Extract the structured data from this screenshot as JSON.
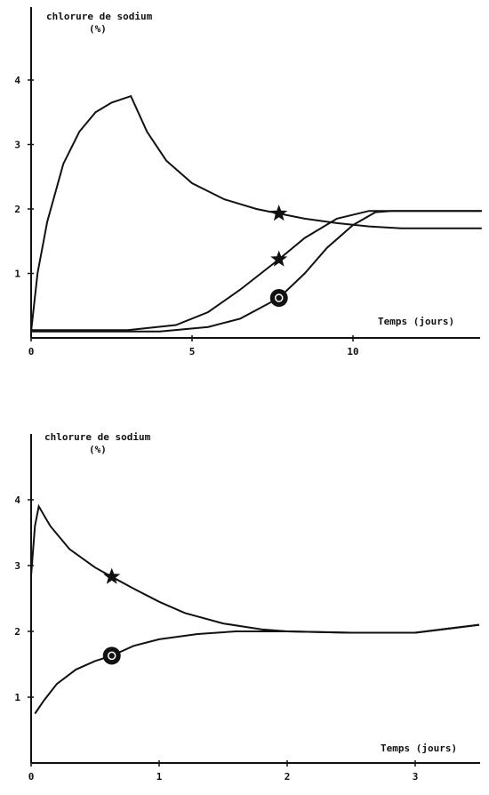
{
  "chart_data": [
    {
      "type": "line",
      "ylabel_line1": "chlorure de sodium",
      "ylabel_line2": "(%)",
      "xlabel": "Temps (jours)",
      "xlim": [
        0,
        14
      ],
      "ylim": [
        0,
        5
      ],
      "xticks": [
        0,
        5,
        10
      ],
      "yticks": [
        1,
        2,
        3,
        4
      ],
      "grid": false,
      "series": [
        {
          "marker": "star",
          "marker_at": [
            7.7,
            1.93
          ],
          "points": [
            [
              0.0,
              0.1
            ],
            [
              0.2,
              1.0
            ],
            [
              0.5,
              1.8
            ],
            [
              1.0,
              2.7
            ],
            [
              1.5,
              3.2
            ],
            [
              2.0,
              3.5
            ],
            [
              2.5,
              3.65
            ],
            [
              3.1,
              3.75
            ],
            [
              3.6,
              3.2
            ],
            [
              4.2,
              2.75
            ],
            [
              5.0,
              2.4
            ],
            [
              6.0,
              2.15
            ],
            [
              7.0,
              2.0
            ],
            [
              7.7,
              1.93
            ],
            [
              8.5,
              1.85
            ],
            [
              9.5,
              1.78
            ],
            [
              10.5,
              1.73
            ],
            [
              11.5,
              1.7
            ],
            [
              14.0,
              1.7
            ]
          ]
        },
        {
          "marker": "star",
          "marker_at": [
            7.7,
            1.22
          ],
          "points": [
            [
              0.0,
              0.12
            ],
            [
              3.0,
              0.12
            ],
            [
              4.5,
              0.2
            ],
            [
              5.5,
              0.4
            ],
            [
              6.5,
              0.75
            ],
            [
              7.7,
              1.22
            ],
            [
              8.5,
              1.55
            ],
            [
              9.5,
              1.85
            ],
            [
              10.5,
              1.97
            ],
            [
              11.0,
              1.97
            ],
            [
              14.0,
              1.97
            ]
          ]
        },
        {
          "marker": "circle",
          "marker_at": [
            7.7,
            0.62
          ],
          "points": [
            [
              0.0,
              0.1
            ],
            [
              4.0,
              0.1
            ],
            [
              5.5,
              0.17
            ],
            [
              6.5,
              0.3
            ],
            [
              7.7,
              0.62
            ],
            [
              8.5,
              1.0
            ],
            [
              9.2,
              1.4
            ],
            [
              10.0,
              1.75
            ],
            [
              10.7,
              1.95
            ],
            [
              11.2,
              1.97
            ],
            [
              14.0,
              1.97
            ]
          ]
        }
      ]
    },
    {
      "type": "line",
      "ylabel_line1": "chlorure de sodium",
      "ylabel_line2": "(%)",
      "xlabel": "Temps (jours)",
      "xlim": [
        0,
        3.5
      ],
      "ylim": [
        0,
        5
      ],
      "xticks": [
        0,
        1,
        2,
        3
      ],
      "yticks": [
        1,
        2,
        3,
        4
      ],
      "grid": false,
      "series": [
        {
          "marker": "star",
          "marker_at": [
            0.63,
            2.83
          ],
          "points": [
            [
              0.0,
              2.85
            ],
            [
              0.03,
              3.6
            ],
            [
              0.06,
              3.9
            ],
            [
              0.15,
              3.6
            ],
            [
              0.3,
              3.25
            ],
            [
              0.5,
              2.97
            ],
            [
              0.63,
              2.83
            ],
            [
              0.8,
              2.65
            ],
            [
              1.0,
              2.45
            ],
            [
              1.2,
              2.28
            ],
            [
              1.5,
              2.12
            ],
            [
              1.8,
              2.03
            ],
            [
              2.0,
              2.0
            ],
            [
              2.5,
              1.98
            ],
            [
              3.0,
              1.98
            ],
            [
              3.5,
              2.1
            ]
          ]
        },
        {
          "marker": "circle",
          "marker_at": [
            0.63,
            1.63
          ],
          "points": [
            [
              0.03,
              0.75
            ],
            [
              0.1,
              0.95
            ],
            [
              0.2,
              1.2
            ],
            [
              0.35,
              1.42
            ],
            [
              0.5,
              1.55
            ],
            [
              0.63,
              1.63
            ],
            [
              0.8,
              1.78
            ],
            [
              1.0,
              1.88
            ],
            [
              1.3,
              1.96
            ],
            [
              1.6,
              2.0
            ],
            [
              2.0,
              2.0
            ],
            [
              2.5,
              1.98
            ],
            [
              3.0,
              1.98
            ],
            [
              3.5,
              2.1
            ]
          ]
        }
      ]
    }
  ]
}
